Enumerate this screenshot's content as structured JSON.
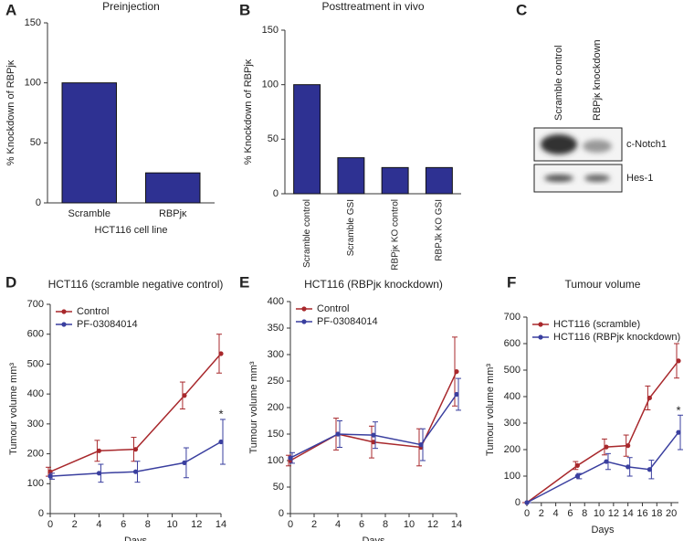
{
  "chart_data": [
    {
      "type": "bar",
      "panel": "A",
      "title": "Preinjection",
      "ylabel": "% Knockdown of RBPjκ",
      "xlabel": "HCT116 cell line",
      "categories": [
        "Scramble",
        "RBPjκ"
      ],
      "values": [
        100,
        25
      ],
      "color": "#2e3192",
      "ylim": [
        0,
        150
      ],
      "yticks": [
        0,
        50,
        100,
        150
      ]
    },
    {
      "type": "bar",
      "panel": "B",
      "title": "Posttreatment in vivo",
      "ylabel": "% Knockdown of RBPjκ",
      "categories": [
        "Scramble control",
        "Scramble GSI",
        "RBPjκ KO control",
        "RBPJk KO GSI"
      ],
      "values": [
        100,
        33,
        24,
        24
      ],
      "color": "#2e3192",
      "ylim": [
        0,
        150
      ],
      "yticks": [
        0,
        50,
        100,
        150
      ]
    },
    {
      "type": "blot",
      "panel": "C",
      "lanes": [
        "Scramble control",
        "RBPjκ knockdown"
      ],
      "bands": [
        "c-Notch1",
        "Hes-1"
      ]
    },
    {
      "type": "line",
      "panel": "D",
      "title": "HCT116 (scramble negative control)",
      "ylabel": "Tumour volume mm³",
      "xlabel": "Days",
      "x": [
        0,
        4,
        7,
        11,
        14
      ],
      "legend": "upper left",
      "series": [
        {
          "name": "Control",
          "color": "#a8282c",
          "values": [
            140,
            210,
            215,
            395,
            535
          ],
          "errors": [
            15,
            35,
            40,
            45,
            65
          ]
        },
        {
          "name": "PF-03084014",
          "color": "#3a3f9f",
          "values": [
            125,
            135,
            140,
            170,
            240
          ],
          "errors": [
            10,
            30,
            35,
            50,
            75
          ]
        }
      ],
      "xlim": [
        0,
        14
      ],
      "xticks": [
        0,
        2,
        4,
        6,
        8,
        10,
        12,
        14
      ],
      "ylim": [
        0,
        700
      ],
      "yticks": [
        0,
        100,
        200,
        300,
        400,
        500,
        600,
        700
      ],
      "annotations": [
        {
          "text": "*",
          "x": 14,
          "y": 330
        }
      ]
    },
    {
      "type": "line",
      "panel": "E",
      "title": "HCT116 (RBPjκ knockdown)",
      "ylabel": "Tumour volume mm³",
      "xlabel": "Days",
      "x": [
        0,
        4,
        7,
        11,
        14
      ],
      "legend": "upper left",
      "series": [
        {
          "name": "Control",
          "color": "#a8282c",
          "values": [
            100,
            150,
            135,
            125,
            268
          ],
          "errors": [
            10,
            30,
            30,
            35,
            65
          ]
        },
        {
          "name": "PF-03084014",
          "color": "#3a3f9f",
          "values": [
            105,
            150,
            148,
            130,
            225
          ],
          "errors": [
            10,
            25,
            25,
            30,
            30
          ]
        }
      ],
      "xlim": [
        0,
        14
      ],
      "xticks": [
        0,
        2,
        4,
        6,
        8,
        10,
        12,
        14
      ],
      "ylim": [
        0,
        400
      ],
      "yticks": [
        0,
        50,
        100,
        150,
        200,
        250,
        300,
        350,
        400
      ]
    },
    {
      "type": "line",
      "panel": "F",
      "title": "Tumour volume",
      "ylabel": "Tumour volume mm³",
      "xlabel": "Days",
      "x": [
        0,
        7,
        11,
        14,
        17,
        21
      ],
      "legend": "upper left",
      "series": [
        {
          "name": "HCT116 (scramble)",
          "color": "#a8282c",
          "values": [
            0,
            140,
            210,
            215,
            395,
            535
          ],
          "errors": [
            0,
            15,
            30,
            40,
            45,
            65
          ]
        },
        {
          "name": "HCT116 (RBPjκ knockdown)",
          "color": "#3a3f9f",
          "values": [
            0,
            100,
            155,
            135,
            125,
            265
          ],
          "errors": [
            0,
            10,
            30,
            35,
            35,
            65
          ]
        }
      ],
      "xlim": [
        0,
        21
      ],
      "xticks": [
        0,
        2,
        4,
        6,
        8,
        10,
        12,
        14,
        16,
        18,
        20
      ],
      "ylim": [
        0,
        700
      ],
      "yticks": [
        0,
        100,
        200,
        300,
        400,
        500,
        600,
        700
      ],
      "annotations": [
        {
          "text": "*",
          "x": 21,
          "y": 345
        }
      ]
    }
  ]
}
